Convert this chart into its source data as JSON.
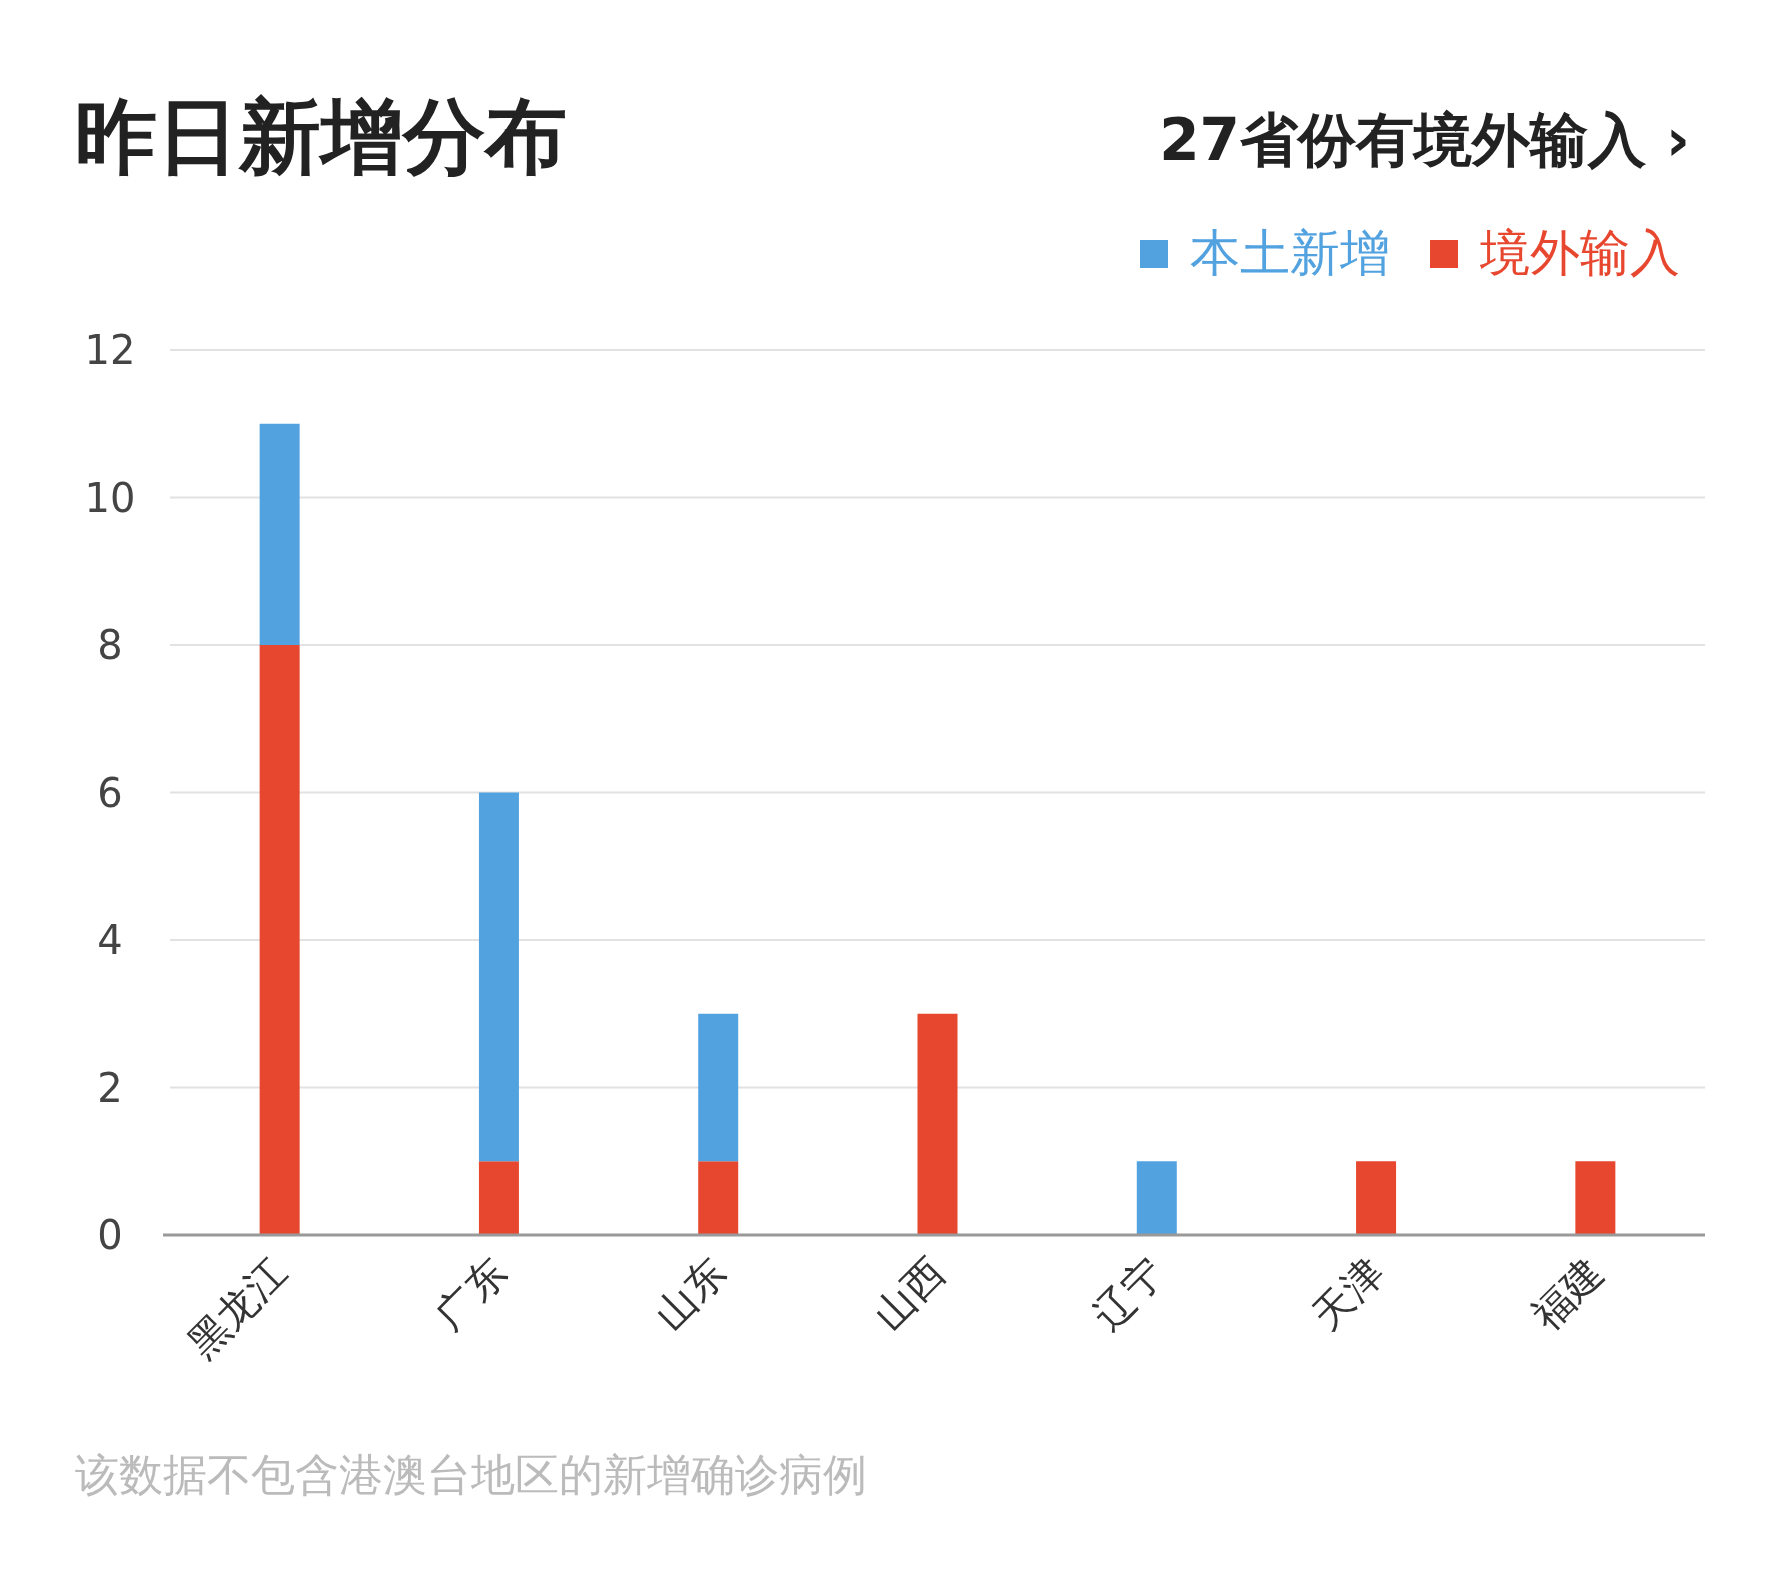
{
  "chart_data": {
    "type": "bar",
    "title": "昨日新增分布",
    "subtitle": "27省份有境外输入 ›",
    "categories": [
      "黑龙江",
      "广东",
      "山东",
      "山西",
      "辽宁",
      "天津",
      "福建"
    ],
    "series": [
      {
        "name": "境外输入",
        "color": "#e8472f",
        "values": [
          8,
          1,
          1,
          3,
          0,
          1,
          1
        ]
      },
      {
        "name": "本土新增",
        "color": "#53a2e0",
        "values": [
          3,
          5,
          2,
          0,
          1,
          0,
          0
        ]
      }
    ],
    "stacked": true,
    "ylim": [
      0,
      12
    ],
    "yticks": [
      0,
      2,
      4,
      6,
      8,
      10,
      12
    ],
    "grid": "y",
    "legend": "top right",
    "annotations": [
      "该数据不包含港澳台地区的新增确诊病例"
    ]
  }
}
